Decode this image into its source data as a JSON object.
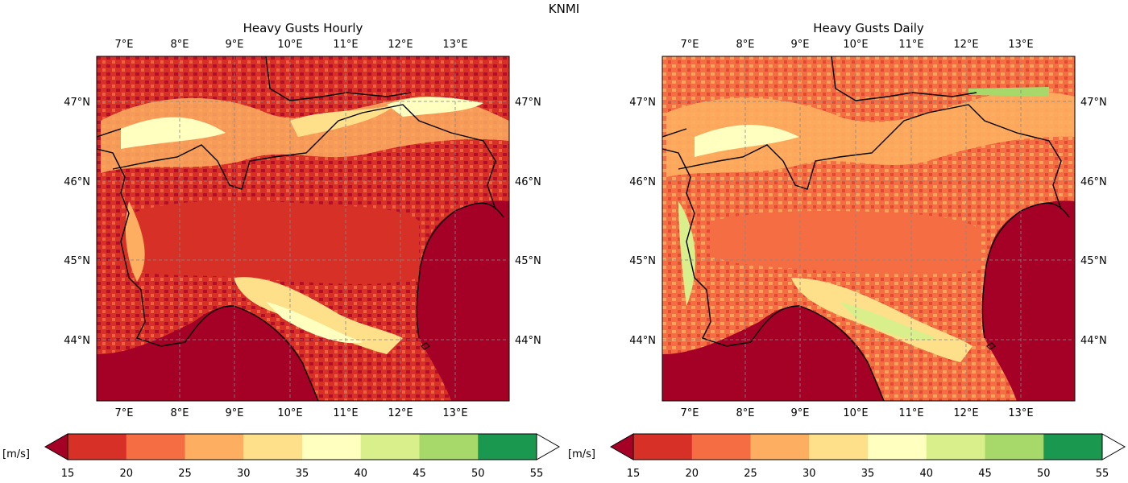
{
  "figure": {
    "title": "KNMI"
  },
  "colors": {
    "under": "#a50026",
    "over": "#ffffff",
    "bins": [
      "#d73027",
      "#f46d43",
      "#fdae61",
      "#fee08b",
      "#ffffbf",
      "#d9ef8b",
      "#a6d96a",
      "#66bd63",
      "#1a9850",
      "#006837"
    ],
    "sea": "#a50026",
    "boundary": "#000000"
  },
  "colorbar": {
    "unit_label": "[m/s]",
    "levels": [
      15,
      20,
      25,
      30,
      35,
      40,
      45,
      50,
      55
    ],
    "colors": [
      "#d73027",
      "#f46d43",
      "#fdae61",
      "#fee08b",
      "#ffffbf",
      "#d9ef8b",
      "#a6d96a",
      "#1a9850",
      "#006837"
    ],
    "extend": "both"
  },
  "maps": [
    {
      "title": "Heavy Gusts Hourly",
      "lon_ticks": [
        "7°E",
        "8°E",
        "9°E",
        "10°E",
        "11°E",
        "12°E",
        "13°E"
      ],
      "lat_ticks": [
        "47°N",
        "46°N",
        "45°N",
        "44°N"
      ],
      "extent": {
        "lon": [
          6.5,
          14.0
        ],
        "lat": [
          43.2,
          47.6
        ]
      }
    },
    {
      "title": "Heavy Gusts Daily",
      "lon_ticks": [
        "7°E",
        "8°E",
        "9°E",
        "10°E",
        "11°E",
        "12°E",
        "13°E"
      ],
      "lat_ticks": [
        "47°N",
        "46°N",
        "45°N",
        "44°N"
      ],
      "extent": {
        "lon": [
          6.5,
          14.0
        ],
        "lat": [
          43.2,
          47.6
        ]
      }
    }
  ]
}
